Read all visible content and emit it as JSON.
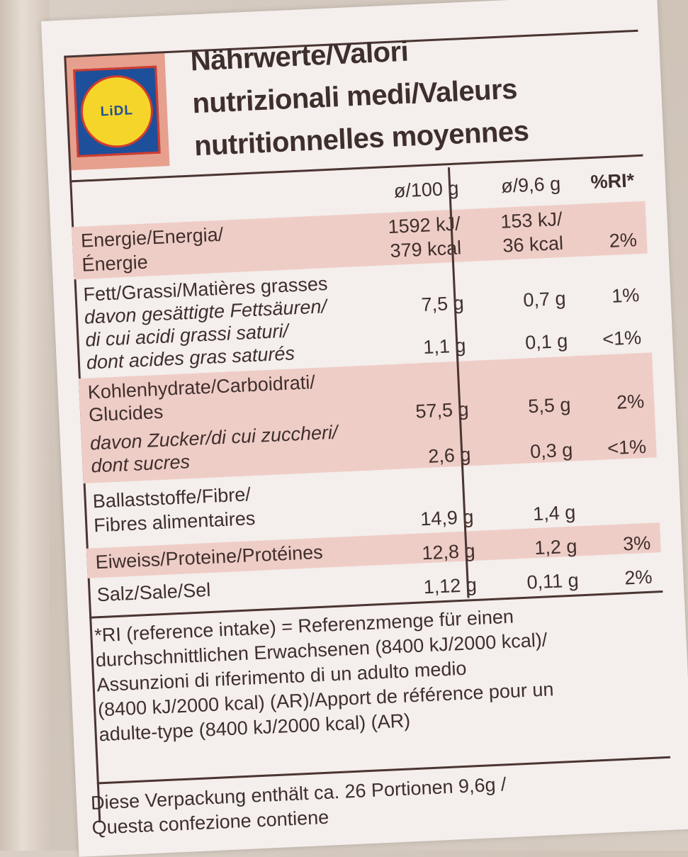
{
  "brand": {
    "logo_text": "LiDL"
  },
  "title": {
    "line1": "Nährwerte/Valori",
    "line2": "nutrizionali medi/Valeurs",
    "line3": "nutritionnelles moyennes"
  },
  "table": {
    "headers": {
      "per100": "ø/100 g",
      "perPortion": "ø/9,6 g",
      "ri": "%RI*"
    },
    "rows": [
      {
        "name1": "Energie/Energia/",
        "name2": "Énergie",
        "v100a": "1592 kJ/",
        "v100b": "379 kcal",
        "vpa": "153 kJ/",
        "vpb": "36 kcal",
        "ri": "2%"
      },
      {
        "name1": "Fett/Grassi/Matières grasses",
        "v100": "7,5 g",
        "vp": "0,7 g",
        "ri": "1%"
      },
      {
        "name1": "davon gesättigte Fettsäuren/",
        "name2": "di cui acidi grassi saturi/",
        "name3": "dont acides gras saturés",
        "v100": "1,1 g",
        "vp": "0,1 g",
        "ri": "<1%"
      },
      {
        "name1": "Kohlenhydrate/Carboidrati/",
        "name2": "Glucides",
        "v100": "57,5 g",
        "vp": "5,5 g",
        "ri": "2%"
      },
      {
        "name1": "davon Zucker/di cui zuccheri/",
        "name2": "dont sucres",
        "v100": "2,6 g",
        "vp": "0,3 g",
        "ri": "<1%"
      },
      {
        "name1": "Ballaststoffe/Fibre/",
        "name2": "Fibres alimentaires",
        "v100": "14,9 g",
        "vp": "1,4 g",
        "ri": ""
      },
      {
        "name1": "Eiweiss/Proteine/Protéines",
        "v100": "12,8 g",
        "vp": "1,2 g",
        "ri": "3%"
      },
      {
        "name1": "Salz/Sale/Sel",
        "v100": "1,12 g",
        "vp": "0,11 g",
        "ri": "2%"
      }
    ]
  },
  "footnote": {
    "line1": "*RI (reference intake) = Referenzmenge für einen",
    "line2": "durchschnittlichen Erwachsenen (8400 kJ/2000 kcal)/",
    "line3": "Assunzioni di riferimento di un adulto medio",
    "line4": "(8400 kJ/2000 kcal) (AR)/Apport de référence pour un",
    "line5": "adulte-type (8400 kJ/2000 kcal) (AR)"
  },
  "portions": {
    "line1": "Diese Verpackung enthält ca. 26 Portionen 9,6g /",
    "line2": "Questa confezione contiene"
  }
}
